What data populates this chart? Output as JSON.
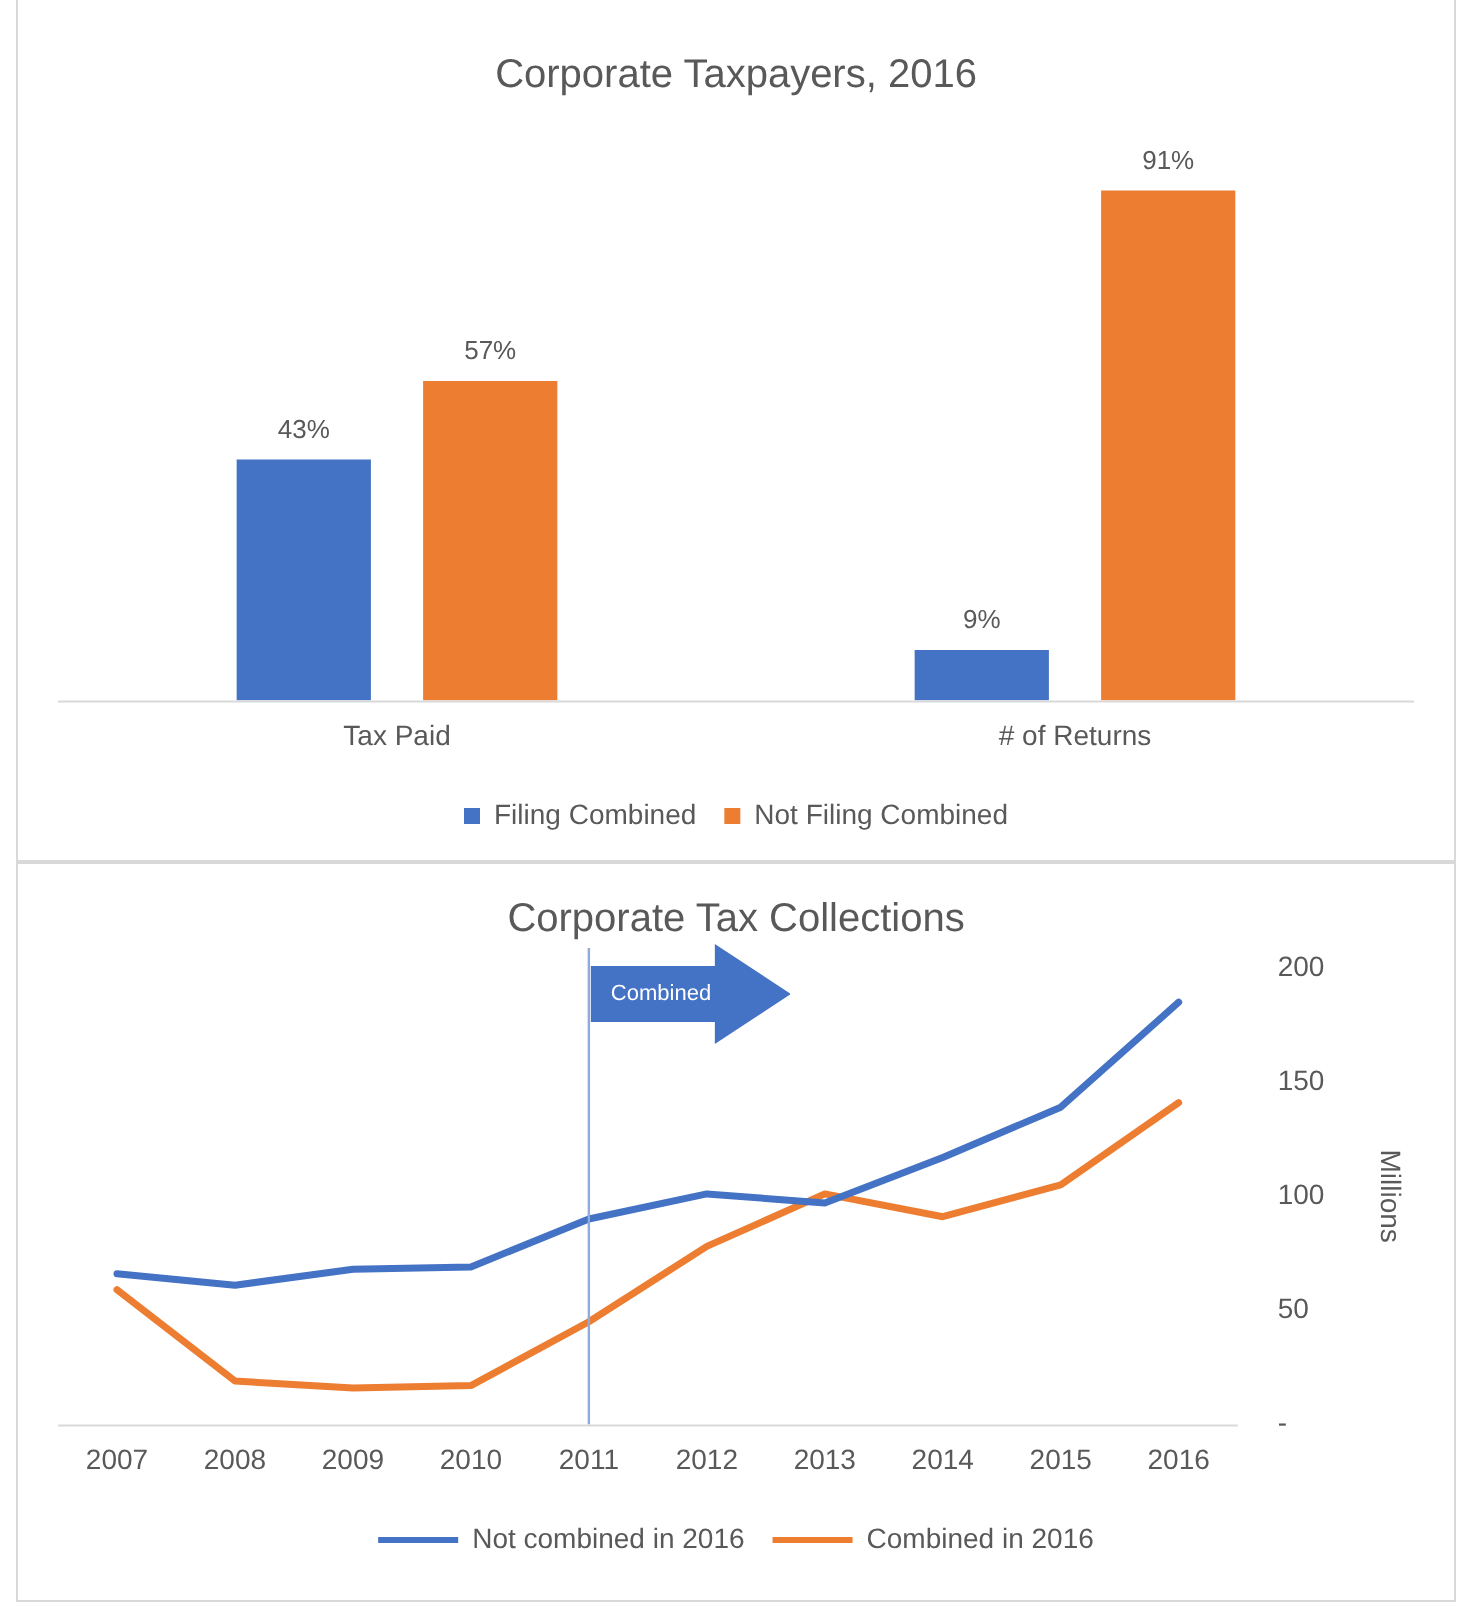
{
  "chart_data": [
    {
      "type": "bar",
      "title": "Corporate Taxpayers, 2016",
      "categories": [
        "Tax Paid",
        "# of Returns"
      ],
      "series": [
        {
          "name": "Filing Combined",
          "color": "#4472c4",
          "values": [
            43,
            9
          ],
          "value_labels": [
            "43%",
            "9%"
          ]
        },
        {
          "name": "Not Filing Combined",
          "color": "#ed7d31",
          "values": [
            57,
            91
          ],
          "value_labels": [
            "57%",
            "91%"
          ]
        }
      ],
      "legend": "bottom",
      "grid": false,
      "tick_labels": "x"
    },
    {
      "type": "line",
      "title": "Corporate Tax Collections",
      "ylabel": "Millions",
      "categories": [
        "2007",
        "2008",
        "2009",
        "2010",
        "2011",
        "2012",
        "2013",
        "2014",
        "2015",
        "2016"
      ],
      "series": [
        {
          "name": "Not combined in 2016",
          "color": "#4472c4",
          "values": [
            66,
            61,
            68,
            69,
            90,
            101,
            97,
            117,
            139,
            185
          ]
        },
        {
          "name": "Combined in 2016",
          "color": "#ed7d31",
          "values": [
            59,
            19,
            16,
            17,
            45,
            78,
            101,
            91,
            105,
            141
          ]
        }
      ],
      "ylim": [
        0,
        200
      ],
      "yticks": [
        {
          "value": 0,
          "label": "-"
        },
        50,
        100,
        150,
        200
      ],
      "ref_lines": [
        {
          "axis": "x",
          "value": "2011",
          "color": "#8faadc"
        }
      ],
      "annotations": [
        "Combined"
      ],
      "legend": "bottom",
      "grid": false,
      "marker": "none",
      "line_style": "solid"
    }
  ]
}
